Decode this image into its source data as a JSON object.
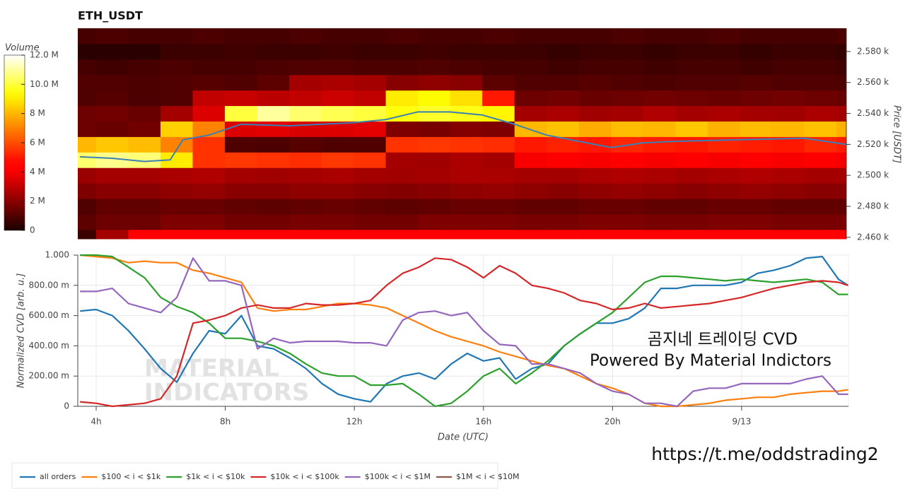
{
  "chart_data": [
    {
      "type": "heatmap",
      "title": "ETH_USDT",
      "colorbar_label": "Volume",
      "y_label": "Price [USDT]",
      "colormap": "hot",
      "clim": [
        0,
        12
      ],
      "colorbar_ticks": [
        {
          "value": 12,
          "label": "12.0 M"
        },
        {
          "value": 10,
          "label": "10.0 M"
        },
        {
          "value": 8,
          "label": "8 M"
        },
        {
          "value": 6,
          "label": "6 M"
        },
        {
          "value": 4,
          "label": "4 M"
        },
        {
          "value": 2,
          "label": "2 M"
        },
        0
      ],
      "xlim": [
        3.43,
        27.31
      ],
      "ylim": [
        2459,
        2595
      ],
      "yticks": [
        {
          "value": 2460,
          "label": "2.460 k"
        },
        {
          "value": 2480,
          "label": "2.480 k"
        },
        {
          "value": 2500,
          "label": "2.500 k"
        },
        {
          "value": 2520,
          "label": "2.520 k"
        },
        {
          "value": 2540,
          "label": "2.540 k"
        },
        {
          "value": 2560,
          "label": "2.560 k"
        },
        {
          "value": 2580,
          "label": "2.580 k"
        }
      ],
      "x_edges": [
        3.43,
        4,
        5,
        6,
        7,
        8,
        9,
        10,
        11,
        12,
        13,
        14,
        15,
        16,
        17,
        18,
        19,
        20,
        21,
        22,
        23,
        24,
        25,
        26,
        27,
        27.31
      ],
      "y_edges": [
        2459,
        2465,
        2475,
        2485,
        2495,
        2505,
        2515,
        2525,
        2535,
        2545,
        2555,
        2565,
        2575,
        2585,
        2595
      ],
      "z": [
        [
          0.6,
          2.5,
          4.5,
          4.6,
          4.5,
          4.6,
          4.5,
          4.6,
          4.5,
          4.6,
          4.5,
          4.6,
          4.5,
          4.6,
          4.5,
          4.6,
          4.5,
          4.6,
          4.5,
          4.6,
          4.5,
          4.6,
          4.5,
          4.6,
          4.5
        ],
        [
          1.2,
          1.5,
          1.5,
          1.8,
          1.8,
          1.6,
          1.6,
          1.7,
          1.7,
          1.6,
          1.6,
          1.8,
          1.8,
          1.8,
          1.7,
          1.7,
          1.8,
          1.8,
          1.7,
          1.7,
          1.8,
          1.8,
          1.7,
          1.7,
          1.7
        ],
        [
          1.0,
          1.3,
          1.3,
          1.4,
          1.4,
          1.3,
          1.2,
          1.3,
          1.4,
          1.3,
          1.2,
          1.3,
          1.4,
          1.4,
          1.3,
          1.3,
          1.4,
          1.4,
          1.3,
          1.3,
          1.4,
          1.4,
          1.3,
          1.3,
          1.3
        ],
        [
          1.8,
          2.0,
          2.0,
          2.1,
          2.2,
          2.0,
          2.0,
          2.1,
          2.1,
          2.0,
          1.9,
          2.0,
          2.1,
          2.2,
          2.1,
          2.0,
          2.1,
          2.2,
          2.1,
          2.0,
          2.1,
          2.2,
          2.1,
          2.0,
          2.0
        ],
        [
          2.3,
          2.5,
          2.5,
          2.6,
          2.7,
          2.5,
          2.4,
          2.5,
          2.6,
          2.5,
          2.4,
          2.5,
          2.6,
          2.6,
          2.5,
          2.5,
          2.6,
          2.7,
          2.6,
          2.5,
          2.6,
          2.7,
          2.6,
          2.5,
          2.5
        ],
        [
          10.5,
          10.8,
          10.6,
          9.0,
          5.5,
          5.6,
          5.5,
          5.4,
          5.6,
          5.5,
          2.5,
          2.4,
          2.6,
          2.5,
          4.0,
          4.1,
          4.0,
          4.2,
          4.0,
          4.1,
          4.0,
          4.1,
          4.0,
          4.2,
          4.0
        ],
        [
          8.0,
          8.3,
          8.1,
          7.0,
          5.5,
          1.0,
          0.9,
          1.1,
          1.0,
          1.0,
          5.5,
          5.6,
          5.5,
          5.4,
          5.0,
          5.2,
          5.0,
          5.3,
          5.1,
          5.0,
          5.2,
          5.1,
          5.0,
          5.3,
          5.1
        ],
        [
          1.5,
          1.4,
          1.6,
          8.5,
          7.0,
          3.5,
          3.6,
          3.4,
          3.5,
          3.6,
          1.8,
          1.7,
          1.9,
          1.8,
          8.0,
          8.2,
          7.8,
          8.1,
          8.0,
          8.3,
          7.9,
          8.1,
          8.0,
          8.2,
          7.9
        ],
        [
          1.5,
          1.6,
          1.4,
          2.5,
          3.5,
          10.0,
          11.0,
          10.5,
          10.2,
          10.0,
          9.5,
          9.8,
          9.6,
          9.2,
          2.5,
          2.6,
          2.4,
          2.5,
          2.7,
          2.5,
          2.6,
          2.5,
          2.4,
          2.6,
          2.5
        ],
        [
          1.0,
          1.1,
          0.9,
          1.0,
          3.0,
          3.1,
          2.9,
          3.0,
          3.2,
          3.0,
          9.0,
          9.3,
          8.8,
          5.0,
          1.5,
          1.6,
          1.4,
          1.5,
          1.6,
          1.5,
          1.4,
          1.5,
          1.6,
          1.5,
          1.4
        ],
        [
          1.0,
          1.0,
          0.9,
          1.0,
          1.1,
          1.0,
          1.2,
          2.5,
          2.6,
          2.5,
          2.0,
          2.1,
          2.0,
          1.2,
          1.0,
          1.0,
          1.1,
          1.0,
          0.9,
          1.0,
          1.0,
          1.1,
          1.0,
          1.0,
          0.9
        ],
        [
          0.8,
          0.7,
          0.8,
          0.9,
          0.8,
          0.8,
          0.9,
          1.0,
          1.0,
          0.9,
          0.9,
          1.0,
          0.9,
          0.8,
          0.8,
          0.7,
          0.8,
          0.8,
          0.7,
          0.8,
          0.8,
          0.7,
          0.8,
          0.8,
          0.7
        ],
        [
          0.3,
          0.3,
          0.3,
          0.6,
          0.6,
          0.7,
          0.6,
          0.6,
          0.7,
          0.6,
          0.6,
          0.7,
          0.6,
          0.6,
          0.6,
          0.5,
          0.6,
          0.6,
          0.5,
          0.6,
          0.6,
          0.5,
          0.6,
          0.6,
          0.5
        ],
        [
          0.8,
          0.9,
          0.8,
          0.8,
          0.9,
          0.8,
          0.8,
          0.9,
          0.8,
          0.8,
          0.9,
          0.8,
          0.8,
          0.9,
          0.8,
          0.8,
          0.8,
          0.9,
          0.8,
          0.8,
          0.9,
          0.8,
          0.8,
          0.8,
          0.9
        ]
      ],
      "series": [
        {
          "color": "#3a7fb5",
          "x": [
            3.5,
            4.5,
            5.5,
            6.3,
            6.7,
            7.5,
            8.5,
            10,
            12,
            13,
            14,
            15,
            16,
            17,
            18,
            19,
            20,
            21,
            22,
            24,
            26,
            27.3
          ],
          "values": [
            2512,
            2511,
            2509,
            2510,
            2523,
            2526,
            2533,
            2532,
            2534,
            2536,
            2541,
            2541,
            2539,
            2533,
            2526,
            2522,
            2518,
            2521,
            2522,
            2523,
            2524,
            2520
          ]
        }
      ]
    },
    {
      "type": "line",
      "x_label": "Date (UTC)",
      "y_label": "Normalized CVD [arb. u.]",
      "grid": true,
      "xlim": [
        3.43,
        27.31
      ],
      "ylim": [
        0,
        1
      ],
      "xticks": [
        {
          "value": 4,
          "label": "4h"
        },
        {
          "value": 8,
          "label": "8h"
        },
        {
          "value": 12,
          "label": "12h"
        },
        {
          "value": 16,
          "label": "16h"
        },
        {
          "value": 20,
          "label": "20h"
        },
        {
          "value": 24,
          "label": "9/13"
        }
      ],
      "yticks": [
        0,
        {
          "value": 0.2,
          "label": "200.00 m"
        },
        {
          "value": 0.4,
          "label": "400.00 m"
        },
        {
          "value": 0.6,
          "label": "600.00 m"
        },
        {
          "value": 0.8,
          "label": "800.00 m"
        },
        {
          "value": 1,
          "label": "1.000"
        }
      ],
      "x": [
        3.5,
        4,
        4.5,
        5,
        5.5,
        6,
        6.5,
        7,
        7.5,
        8,
        8.5,
        9,
        9.5,
        10,
        10.5,
        11,
        11.5,
        12,
        12.5,
        13,
        13.5,
        14,
        14.5,
        15,
        15.5,
        16,
        16.5,
        17,
        17.5,
        18,
        18.5,
        19,
        19.5,
        20,
        20.5,
        21,
        21.5,
        22,
        22.5,
        23,
        23.5,
        24,
        24.5,
        25,
        25.5,
        26,
        26.5,
        27,
        27.3
      ],
      "series": [
        {
          "name": "all orders",
          "color": "#1f77b4",
          "values": [
            0.63,
            0.64,
            0.6,
            0.5,
            0.38,
            0.25,
            0.16,
            0.35,
            0.5,
            0.48,
            0.6,
            0.4,
            0.38,
            0.32,
            0.25,
            0.15,
            0.08,
            0.05,
            0.03,
            0.15,
            0.2,
            0.22,
            0.18,
            0.28,
            0.35,
            0.3,
            0.32,
            0.18,
            0.25,
            0.28,
            0.4,
            0.48,
            0.55,
            0.55,
            0.58,
            0.65,
            0.78,
            0.78,
            0.8,
            0.8,
            0.8,
            0.82,
            0.88,
            0.9,
            0.93,
            0.98,
            0.99,
            0.84,
            0.8
          ]
        },
        {
          "name": "$100 < i < $1k",
          "color": "#ff7f0e",
          "values": [
            1.0,
            0.99,
            0.98,
            0.95,
            0.96,
            0.95,
            0.95,
            0.9,
            0.88,
            0.85,
            0.82,
            0.65,
            0.63,
            0.64,
            0.64,
            0.66,
            0.68,
            0.68,
            0.67,
            0.65,
            0.6,
            0.55,
            0.5,
            0.46,
            0.43,
            0.4,
            0.36,
            0.33,
            0.3,
            0.27,
            0.25,
            0.2,
            0.15,
            0.12,
            0.08,
            0.02,
            0.0,
            0.0,
            0.01,
            0.02,
            0.04,
            0.05,
            0.06,
            0.06,
            0.08,
            0.09,
            0.1,
            0.1,
            0.11
          ]
        },
        {
          "name": "$1k < i < $10k",
          "color": "#2ca02c",
          "values": [
            1.0,
            1.0,
            0.99,
            0.92,
            0.85,
            0.72,
            0.66,
            0.62,
            0.55,
            0.45,
            0.45,
            0.43,
            0.4,
            0.35,
            0.28,
            0.22,
            0.2,
            0.2,
            0.14,
            0.14,
            0.15,
            0.08,
            0.0,
            0.02,
            0.1,
            0.2,
            0.25,
            0.15,
            0.22,
            0.3,
            0.4,
            0.48,
            0.55,
            0.62,
            0.72,
            0.82,
            0.86,
            0.86,
            0.85,
            0.84,
            0.83,
            0.84,
            0.83,
            0.82,
            0.83,
            0.84,
            0.82,
            0.74,
            0.74
          ]
        },
        {
          "name": "$10k < i < $100k",
          "color": "#d62728",
          "values": [
            0.03,
            0.02,
            0.0,
            0.01,
            0.02,
            0.05,
            0.2,
            0.55,
            0.57,
            0.6,
            0.65,
            0.67,
            0.65,
            0.65,
            0.68,
            0.67,
            0.67,
            0.68,
            0.7,
            0.8,
            0.88,
            0.92,
            0.98,
            0.97,
            0.92,
            0.85,
            0.93,
            0.88,
            0.8,
            0.78,
            0.75,
            0.7,
            0.68,
            0.64,
            0.65,
            0.68,
            0.65,
            0.66,
            0.67,
            0.68,
            0.7,
            0.72,
            0.75,
            0.78,
            0.8,
            0.82,
            0.83,
            0.82,
            0.8
          ]
        },
        {
          "name": "$100k < i < $1M",
          "color": "#9467bd",
          "values": [
            0.76,
            0.76,
            0.78,
            0.68,
            0.65,
            0.62,
            0.72,
            0.98,
            0.83,
            0.83,
            0.8,
            0.38,
            0.45,
            0.42,
            0.43,
            0.43,
            0.43,
            0.42,
            0.42,
            0.4,
            0.57,
            0.62,
            0.63,
            0.6,
            0.62,
            0.5,
            0.41,
            0.4,
            0.28,
            0.28,
            0.25,
            0.22,
            0.15,
            0.1,
            0.08,
            0.02,
            0.02,
            0.0,
            0.1,
            0.12,
            0.12,
            0.15,
            0.15,
            0.15,
            0.15,
            0.18,
            0.2,
            0.08,
            0.08
          ]
        },
        {
          "name": "$1M < i < $10M",
          "color": "#8c564b"
        }
      ],
      "annotations": [
        "곰지네 트레이딩 CVD",
        "Powered By Material Indictors"
      ],
      "watermark": [
        "MATERIAL",
        "INDICATORS"
      ]
    }
  ],
  "footer_link": "https://t.me/oddstrading2"
}
